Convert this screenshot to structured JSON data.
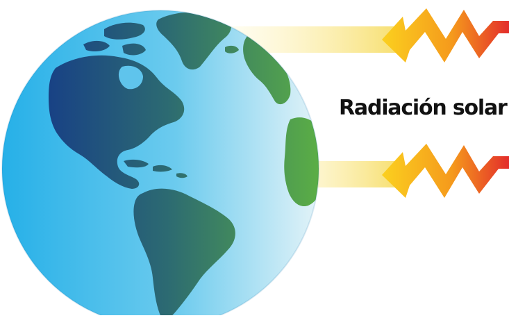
{
  "diagram": {
    "label": "Radiación solar",
    "colors": {
      "ocean_light": "#2fb6ea",
      "ocean_shade": "#bfe6f5",
      "land_dark": "#1c4f8e",
      "land_mid": "#2f7a6a",
      "land_light": "#55a84a",
      "beam_yellow": "#fbe98a",
      "arrow_yellow": "#f9c21a",
      "arrow_orange": "#f38a1e",
      "arrow_red": "#e5322d"
    }
  }
}
